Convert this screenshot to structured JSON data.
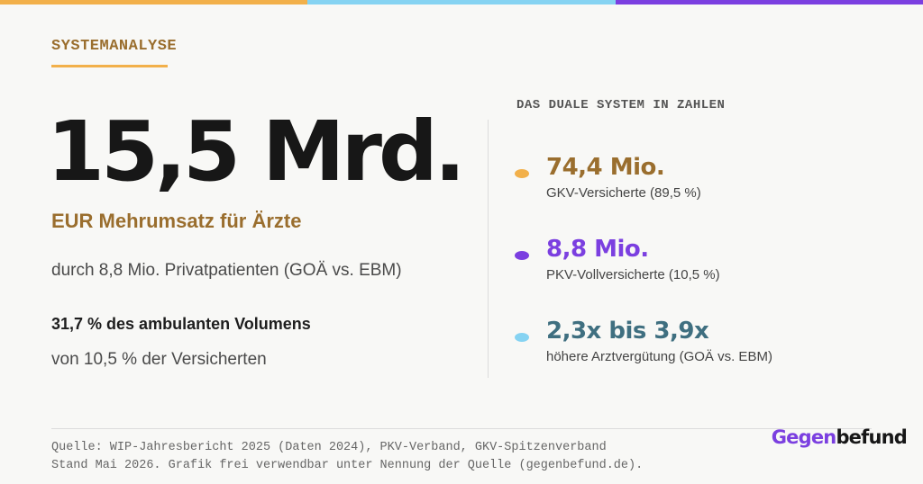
{
  "colors": {
    "bar_left": "#f2b04a",
    "bar_mid": "#86d3f2",
    "bar_right": "#7b3fe0",
    "accent_gold": "#9a6e2e",
    "accent_purple": "#7b3fe0",
    "accent_teal": "#3f6f80"
  },
  "header": {
    "eyebrow": "SYSTEMANALYSE"
  },
  "main": {
    "hero_value": "15,5 Mrd.",
    "hero_subtitle": "EUR Mehrumsatz für Ärzte",
    "line1": "durch 8,8 Mio. Privatpatienten (GOÄ vs. EBM)",
    "line2": "31,7 % des ambulanten Volumens",
    "line3": "von 10,5 % der Versicherten"
  },
  "side": {
    "title": "DAS DUALE SYSTEM IN ZAHLEN",
    "stats": [
      {
        "value": "74,4 Mio.",
        "label": "GKV-Versicherte (89,5 %)",
        "dot_color": "#f2b04a",
        "value_color": "#9a6e2e"
      },
      {
        "value": "8,8 Mio.",
        "label": "PKV-Vollversicherte (10,5 %)",
        "dot_color": "#7b3fe0",
        "value_color": "#7b3fe0"
      },
      {
        "value": "2,3x bis 3,9x",
        "label": "höhere Arztvergütung (GOÄ vs. EBM)",
        "dot_color": "#86d3f2",
        "value_color": "#3f6f80"
      }
    ]
  },
  "footer": {
    "source_line1": "Quelle: WIP-Jahresbericht 2025 (Daten 2024), PKV-Verband, GKV-Spitzenverband",
    "source_line2": "Stand Mai 2026. Grafik frei verwendbar unter Nennung der Quelle (gegenbefund.de).",
    "brand_part1": "Gegen",
    "brand_part2": "befund",
    "brand_color1": "#7b3fe0",
    "brand_color2": "#171717"
  }
}
